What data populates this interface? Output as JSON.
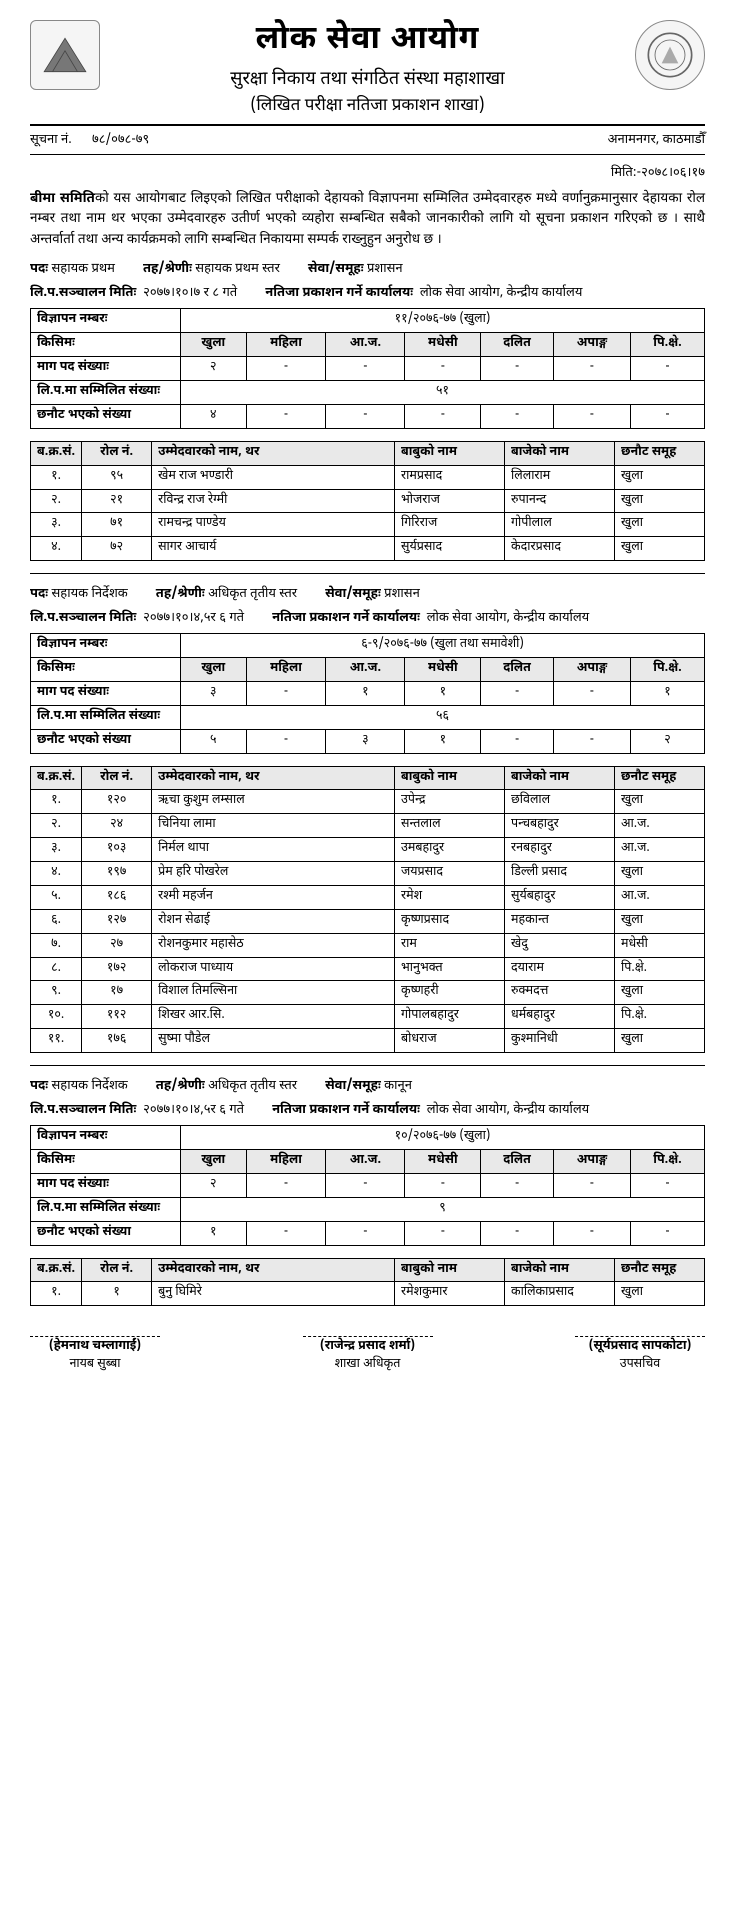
{
  "header": {
    "main_title": "लोक सेवा आयोग",
    "sub1": "सुरक्षा निकाय तथा संगठित संस्था महाशाखा",
    "sub2": "(लिखित परीक्षा नतिजा प्रकाशन शाखा)",
    "notice_label": "सूचना नं.",
    "notice_no": "७८/०७८-७९",
    "address": "अनामनगर, काठमाडौँ",
    "date_label": "मिति:-",
    "date": "२०७८।०६।१७"
  },
  "para": "बीमा समितिको यस आयोगबाट लिइएको लिखित परीक्षाको देहायको विज्ञापनमा सम्मिलित उम्मेदवारहरु मध्ये वर्णानुक्रमानुसार देहायका रोल नम्बर तथा नाम थर भएका उम्मेदवारहरु उतीर्ण भएको व्यहोरा सम्बन्धित सबैको जानकारीको लागि यो सूचना प्रकाशन गरिएको छ । साथै अन्तर्वार्ता तथा अन्य कार्यक्रमको लागि सम्बन्धित निकायमा सम्पर्क राख्नुहुन अनुरोध छ ।",
  "para_lead": "बीमा समिति",
  "labels": {
    "post": "पदः",
    "level": "तह/श्रेणीः",
    "service": "सेवा/समूहः",
    "exam_date": "लि.प.सञ्चालन मितिः",
    "publish_office": "नतिजा प्रकाशन गर्ने कार्यालयः",
    "ad_no": "विज्ञापन नम्बरः",
    "kind": "किसिमः",
    "demand": "माग पद संख्याः",
    "appeared": "लि.प.मा सम्मिलित संख्याः",
    "selected": "छनौट भएको संख्या"
  },
  "quota_headers": [
    "खुला",
    "महिला",
    "आ.ज.",
    "मधेसी",
    "दलित",
    "अपाङ्ग",
    "पि.क्षे."
  ],
  "cand_headers": [
    "ब.क्र.सं.",
    "रोल नं.",
    "उम्मेदवारको नाम, थर",
    "बाबुको नाम",
    "बाजेको नाम",
    "छनौट समूह"
  ],
  "sections": [
    {
      "post": "सहायक प्रथम",
      "level": "सहायक प्रथम स्तर",
      "service": "प्रशासन",
      "exam_date": "२०७७।१०।७ र ८ गते",
      "publish_office": "लोक सेवा आयोग, केन्द्रीय कार्यालय",
      "ad_no": "११/२०७६-७७ (खुला)",
      "demand": [
        "२",
        "-",
        "-",
        "-",
        "-",
        "-",
        "-"
      ],
      "appeared": "५१",
      "selected": [
        "४",
        "-",
        "-",
        "-",
        "-",
        "-",
        "-"
      ],
      "candidates": [
        {
          "sn": "१.",
          "roll": "९५",
          "name": "खेम राज भण्डारी",
          "fa": "रामप्रसाद",
          "gf": "लिलाराम",
          "grp": "खुला"
        },
        {
          "sn": "२.",
          "roll": "२१",
          "name": "रविन्द्र राज रेग्मी",
          "fa": "भोजराज",
          "gf": "रुपानन्द",
          "grp": "खुला"
        },
        {
          "sn": "३.",
          "roll": "७१",
          "name": "रामचन्द्र पाण्डेय",
          "fa": "गिरिराज",
          "gf": "गोपीलाल",
          "grp": "खुला"
        },
        {
          "sn": "४.",
          "roll": "७२",
          "name": "सागर आचार्य",
          "fa": "सुर्यप्रसाद",
          "gf": "केदारप्रसाद",
          "grp": "खुला"
        }
      ]
    },
    {
      "post": "सहायक निर्देशक",
      "level": "अधिकृत तृतीय स्तर",
      "service": "प्रशासन",
      "exam_date": "२०७७।१०।४,५र ६ गते",
      "publish_office": "लोक सेवा आयोग, केन्द्रीय कार्यालय",
      "ad_no": "६-९/२०७६-७७ (खुला तथा समावेशी)",
      "demand": [
        "३",
        "-",
        "१",
        "१",
        "-",
        "-",
        "१"
      ],
      "appeared": "५६",
      "selected": [
        "५",
        "-",
        "३",
        "१",
        "-",
        "-",
        "२"
      ],
      "candidates": [
        {
          "sn": "१.",
          "roll": "१२०",
          "name": "ऋचा कुशुम लम्साल",
          "fa": "उपेन्द्र",
          "gf": "छविलाल",
          "grp": "खुला"
        },
        {
          "sn": "२.",
          "roll": "२४",
          "name": "चिनिया लामा",
          "fa": "सन्तलाल",
          "gf": "पन्चबहादुर",
          "grp": "आ.ज."
        },
        {
          "sn": "३.",
          "roll": "१०३",
          "name": "निर्मल थापा",
          "fa": "उमबहादुर",
          "gf": "रनबहादुर",
          "grp": "आ.ज."
        },
        {
          "sn": "४.",
          "roll": "१९७",
          "name": "प्रेम हरि पोखरेल",
          "fa": "जयप्रसाद",
          "gf": "डिल्ली प्रसाद",
          "grp": "खुला"
        },
        {
          "sn": "५.",
          "roll": "१८६",
          "name": "रश्मी महर्जन",
          "fa": "रमेश",
          "gf": "सुर्यबहादुर",
          "grp": "आ.ज."
        },
        {
          "sn": "६.",
          "roll": "१२७",
          "name": "रोशन सेढाई",
          "fa": "कृष्णप्रसाद",
          "gf": "महकान्त",
          "grp": "खुला"
        },
        {
          "sn": "७.",
          "roll": "२७",
          "name": "रोशनकुमार महासेठ",
          "fa": "राम",
          "gf": "खेदु",
          "grp": "मधेसी"
        },
        {
          "sn": "८.",
          "roll": "१७२",
          "name": "लोकराज पाध्याय",
          "fa": "भानुभक्त",
          "gf": "दयाराम",
          "grp": "पि.क्षे."
        },
        {
          "sn": "९.",
          "roll": "१७",
          "name": "विशाल तिमल्सिना",
          "fa": "कृष्णहरी",
          "gf": "रुक्मदत्त",
          "grp": "खुला"
        },
        {
          "sn": "१०.",
          "roll": "११२",
          "name": "शिखर आर.सि.",
          "fa": "गोपालबहादुर",
          "gf": "धर्मबहादुर",
          "grp": "पि.क्षे."
        },
        {
          "sn": "११.",
          "roll": "१७६",
          "name": "सुष्मा पौडेल",
          "fa": "बोधराज",
          "gf": "कुश्मानिधी",
          "grp": "खुला"
        }
      ]
    },
    {
      "post": "सहायक निर्देशक",
      "level": "अधिकृत तृतीय स्तर",
      "service": "कानून",
      "exam_date": "२०७७।१०।४,५र ६ गते",
      "publish_office": "लोक सेवा आयोग, केन्द्रीय कार्यालय",
      "ad_no": "१०/२०७६-७७ (खुला)",
      "demand": [
        "२",
        "-",
        "-",
        "-",
        "-",
        "-",
        "-"
      ],
      "appeared": "९",
      "selected": [
        "१",
        "-",
        "-",
        "-",
        "-",
        "-",
        "-"
      ],
      "candidates": [
        {
          "sn": "१.",
          "roll": "१",
          "name": "बुनु घिमिरे",
          "fa": "रमेशकुमार",
          "gf": "कालिकाप्रसाद",
          "grp": "खुला"
        }
      ]
    }
  ],
  "signatures": [
    {
      "name": "(हेमनाथ चम्लागाईं)",
      "desig": "नायब सुब्बा"
    },
    {
      "name": "(राजेन्द्र प्रसाद शर्मा)",
      "desig": "शाखा अधिकृत"
    },
    {
      "name": "(सूर्यप्रसाद सापकोटा)",
      "desig": "उपसचिव"
    }
  ]
}
